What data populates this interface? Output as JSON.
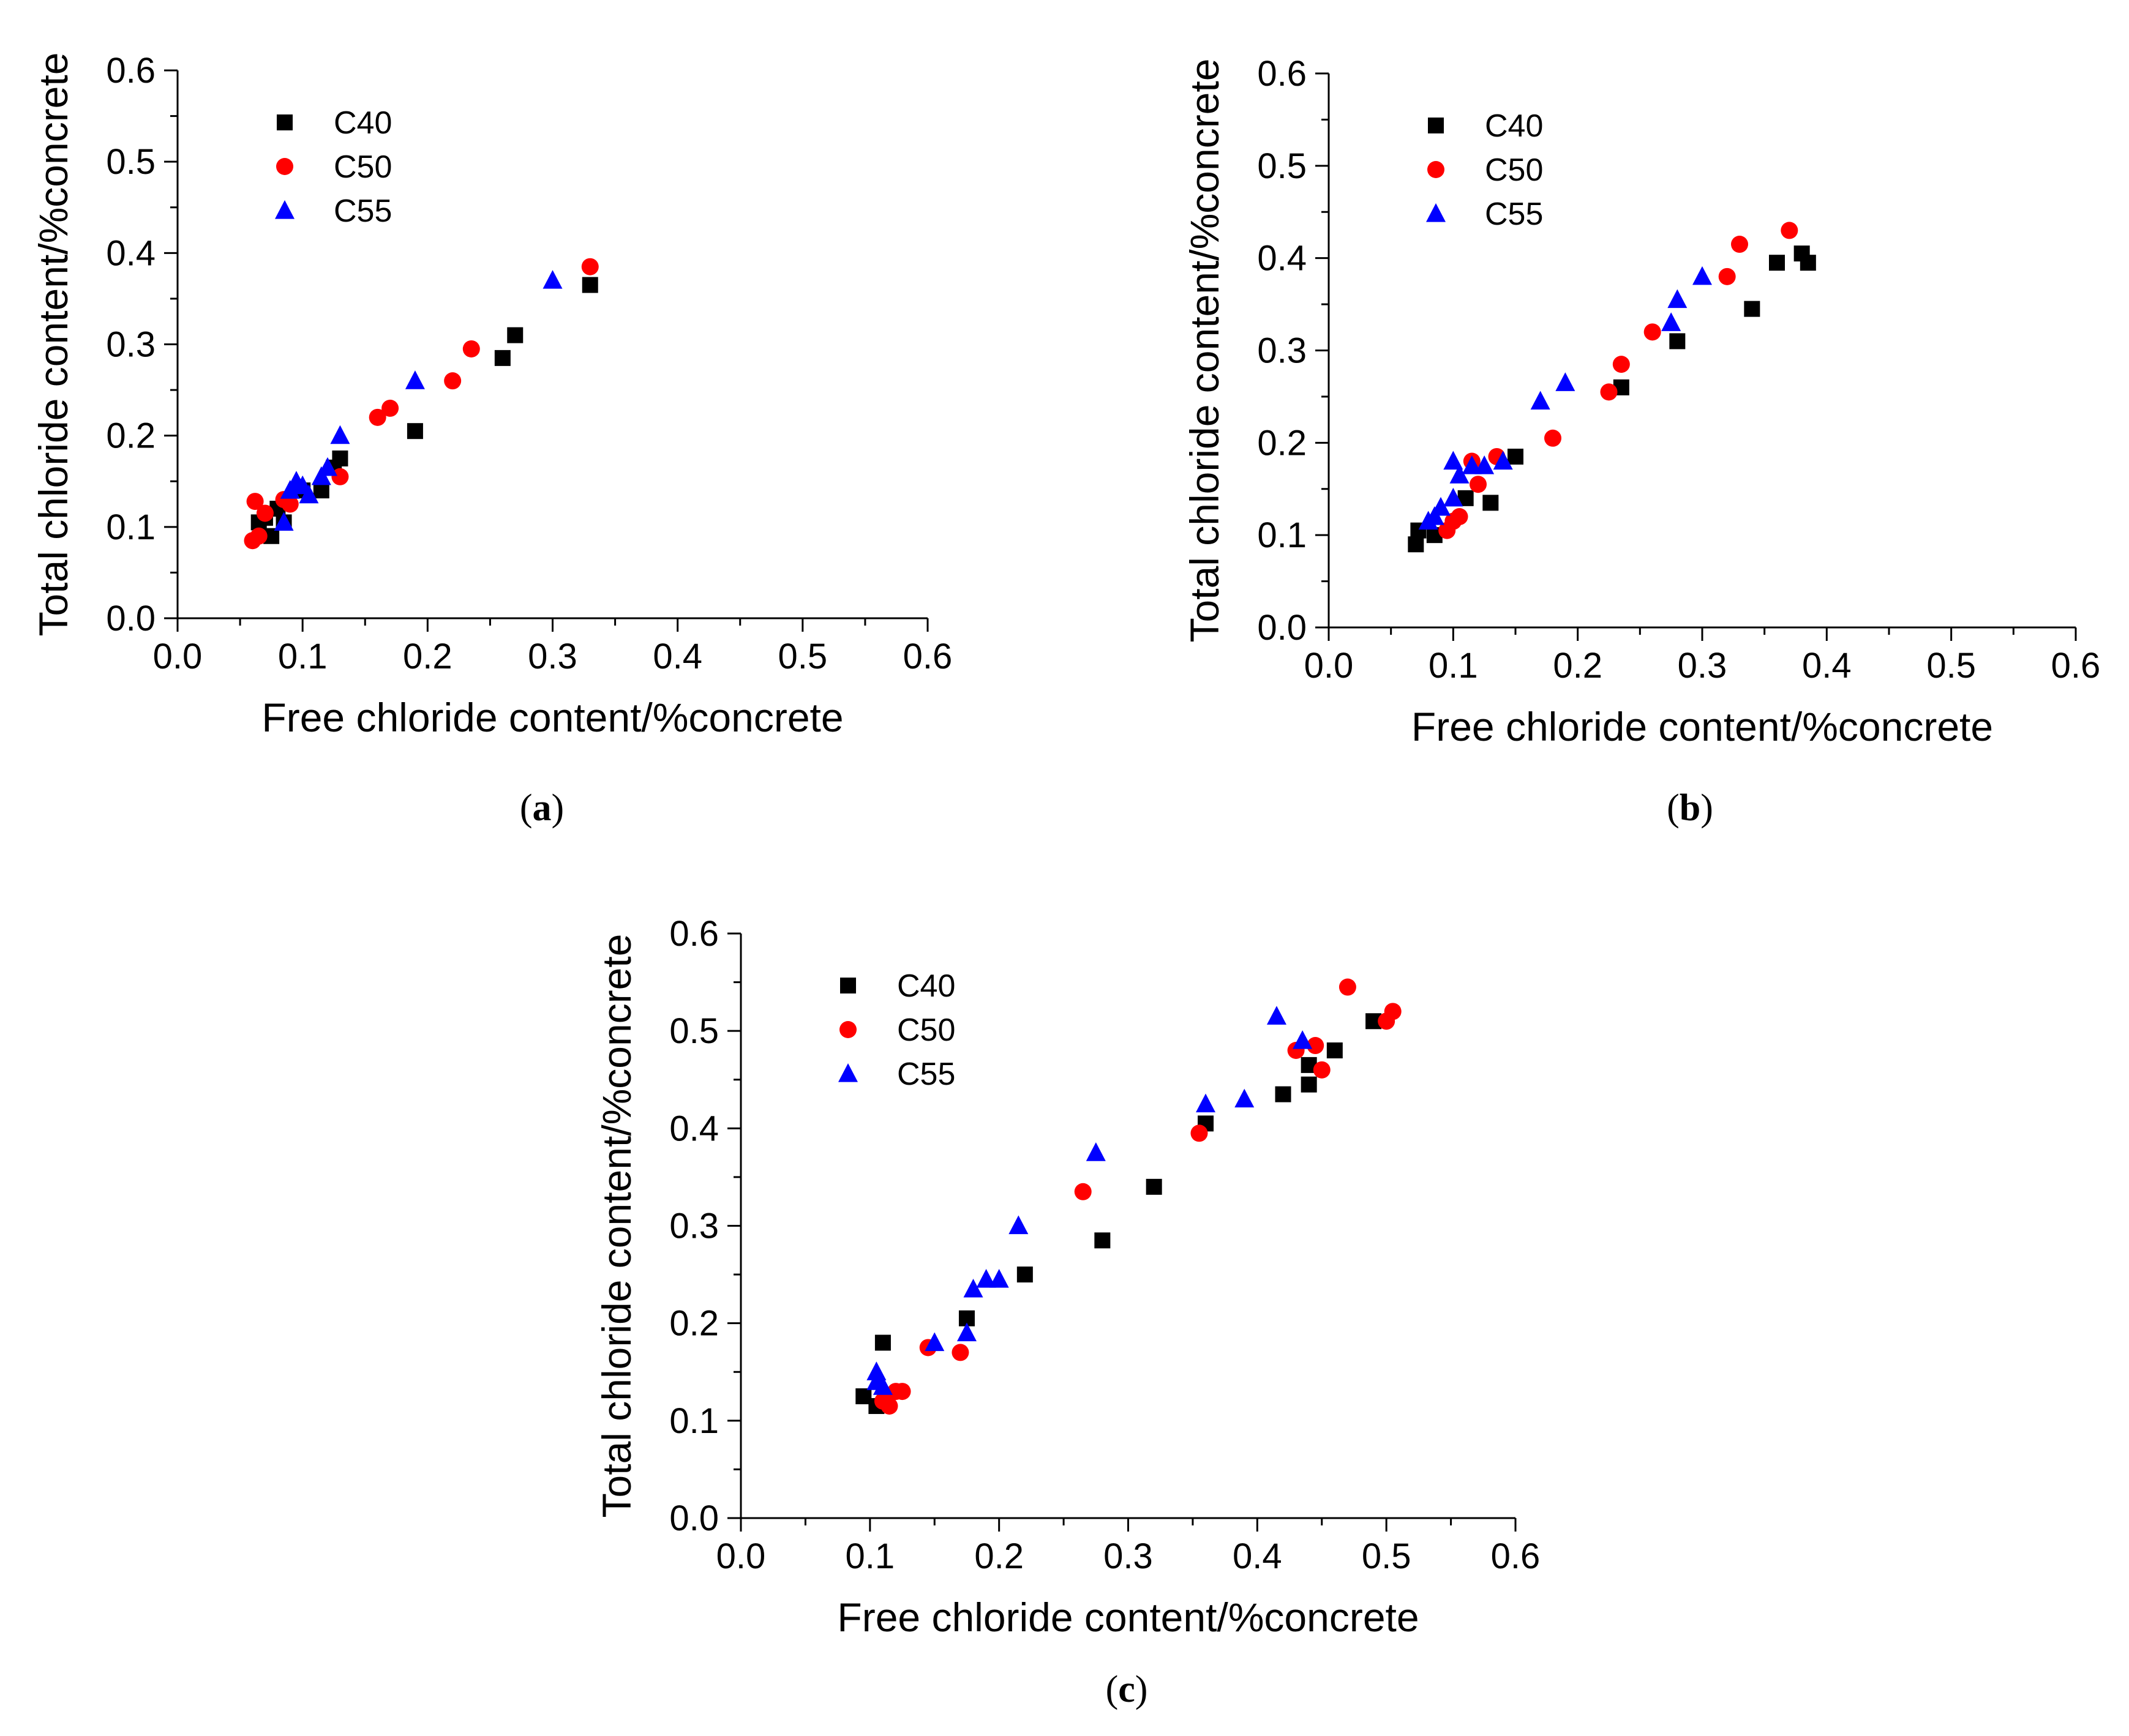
{
  "colors": {
    "C40": "#000000",
    "C50": "#ff0000",
    "C55": "#0000ff"
  },
  "chart_data": [
    {
      "panel": "a",
      "type": "scatter",
      "xlabel": "Free chloride content/%concrete",
      "ylabel": "Total chloride content/%concrete",
      "xlim": [
        0,
        0.6
      ],
      "ylim": [
        0,
        0.6
      ],
      "xticks": [
        "0.0",
        "0.1",
        "0.2",
        "0.3",
        "0.4",
        "0.5",
        "0.6"
      ],
      "yticks": [
        "0.0",
        "0.1",
        "0.2",
        "0.3",
        "0.4",
        "0.5",
        "0.6"
      ],
      "legend": [
        "C40",
        "C50",
        "C55"
      ],
      "series": [
        {
          "name": "C40",
          "marker": "square",
          "points": [
            [
              0.065,
              0.105
            ],
            [
              0.07,
              0.11
            ],
            [
              0.075,
              0.09
            ],
            [
              0.08,
              0.12
            ],
            [
              0.085,
              0.105
            ],
            [
              0.1,
              0.14
            ],
            [
              0.115,
              0.14
            ],
            [
              0.125,
              0.165
            ],
            [
              0.13,
              0.175
            ],
            [
              0.19,
              0.205
            ],
            [
              0.26,
              0.285
            ],
            [
              0.27,
              0.31
            ],
            [
              0.33,
              0.365
            ]
          ]
        },
        {
          "name": "C50",
          "marker": "circle",
          "points": [
            [
              0.06,
              0.085
            ],
            [
              0.062,
              0.128
            ],
            [
              0.065,
              0.09
            ],
            [
              0.07,
              0.115
            ],
            [
              0.085,
              0.13
            ],
            [
              0.09,
              0.125
            ],
            [
              0.13,
              0.155
            ],
            [
              0.16,
              0.22
            ],
            [
              0.17,
              0.23
            ],
            [
              0.22,
              0.26
            ],
            [
              0.235,
              0.295
            ],
            [
              0.33,
              0.385
            ]
          ]
        },
        {
          "name": "C55",
          "marker": "triangle",
          "points": [
            [
              0.085,
              0.105
            ],
            [
              0.09,
              0.14
            ],
            [
              0.095,
              0.15
            ],
            [
              0.1,
              0.145
            ],
            [
              0.105,
              0.135
            ],
            [
              0.115,
              0.155
            ],
            [
              0.12,
              0.165
            ],
            [
              0.13,
              0.2
            ],
            [
              0.19,
              0.26
            ],
            [
              0.3,
              0.37
            ]
          ]
        }
      ]
    },
    {
      "panel": "b",
      "type": "scatter",
      "xlabel": "Free chloride content/%concrete",
      "ylabel": "Total chloride content/%concrete",
      "xlim": [
        0,
        0.6
      ],
      "ylim": [
        0,
        0.6
      ],
      "xticks": [
        "0.0",
        "0.1",
        "0.2",
        "0.3",
        "0.4",
        "0.5",
        "0.6"
      ],
      "yticks": [
        "0.0",
        "0.1",
        "0.2",
        "0.3",
        "0.4",
        "0.5",
        "0.6"
      ],
      "legend": [
        "C40",
        "C50",
        "C55"
      ],
      "series": [
        {
          "name": "C40",
          "marker": "square",
          "points": [
            [
              0.07,
              0.09
            ],
            [
              0.072,
              0.105
            ],
            [
              0.085,
              0.1
            ],
            [
              0.11,
              0.14
            ],
            [
              0.13,
              0.135
            ],
            [
              0.15,
              0.185
            ],
            [
              0.235,
              0.26
            ],
            [
              0.28,
              0.31
            ],
            [
              0.34,
              0.345
            ],
            [
              0.36,
              0.395
            ],
            [
              0.38,
              0.405
            ],
            [
              0.385,
              0.395
            ]
          ]
        },
        {
          "name": "C50",
          "marker": "circle",
          "points": [
            [
              0.095,
              0.105
            ],
            [
              0.1,
              0.115
            ],
            [
              0.105,
              0.12
            ],
            [
              0.115,
              0.18
            ],
            [
              0.12,
              0.155
            ],
            [
              0.135,
              0.185
            ],
            [
              0.18,
              0.205
            ],
            [
              0.225,
              0.255
            ],
            [
              0.235,
              0.285
            ],
            [
              0.26,
              0.32
            ],
            [
              0.32,
              0.38
            ],
            [
              0.33,
              0.415
            ],
            [
              0.37,
              0.43
            ]
          ]
        },
        {
          "name": "C55",
          "marker": "triangle",
          "points": [
            [
              0.08,
              0.115
            ],
            [
              0.085,
              0.12
            ],
            [
              0.09,
              0.13
            ],
            [
              0.1,
              0.14
            ],
            [
              0.1,
              0.18
            ],
            [
              0.105,
              0.165
            ],
            [
              0.115,
              0.175
            ],
            [
              0.125,
              0.175
            ],
            [
              0.14,
              0.18
            ],
            [
              0.17,
              0.245
            ],
            [
              0.19,
              0.265
            ],
            [
              0.275,
              0.33
            ],
            [
              0.28,
              0.355
            ],
            [
              0.3,
              0.38
            ]
          ]
        }
      ]
    },
    {
      "panel": "c",
      "type": "scatter",
      "xlabel": "Free chloride content/%concrete",
      "ylabel": "Total chloride content/%concrete",
      "xlim": [
        0,
        0.6
      ],
      "ylim": [
        0,
        0.6
      ],
      "xticks": [
        "0.0",
        "0.1",
        "0.2",
        "0.3",
        "0.4",
        "0.5",
        "0.6"
      ],
      "yticks": [
        "0.0",
        "0.1",
        "0.2",
        "0.3",
        "0.4",
        "0.5",
        "0.6"
      ],
      "legend": [
        "C40",
        "C50",
        "C55"
      ],
      "series": [
        {
          "name": "C40",
          "marker": "square",
          "points": [
            [
              0.095,
              0.125
            ],
            [
              0.105,
              0.115
            ],
            [
              0.11,
              0.18
            ],
            [
              0.175,
              0.205
            ],
            [
              0.22,
              0.25
            ],
            [
              0.28,
              0.285
            ],
            [
              0.32,
              0.34
            ],
            [
              0.36,
              0.405
            ],
            [
              0.42,
              0.435
            ],
            [
              0.44,
              0.445
            ],
            [
              0.44,
              0.465
            ],
            [
              0.46,
              0.48
            ],
            [
              0.49,
              0.51
            ]
          ]
        },
        {
          "name": "C50",
          "marker": "circle",
          "points": [
            [
              0.11,
              0.12
            ],
            [
              0.115,
              0.115
            ],
            [
              0.12,
              0.13
            ],
            [
              0.125,
              0.13
            ],
            [
              0.145,
              0.175
            ],
            [
              0.17,
              0.17
            ],
            [
              0.265,
              0.335
            ],
            [
              0.355,
              0.395
            ],
            [
              0.43,
              0.48
            ],
            [
              0.445,
              0.485
            ],
            [
              0.45,
              0.46
            ],
            [
              0.47,
              0.545
            ],
            [
              0.5,
              0.51
            ],
            [
              0.505,
              0.52
            ]
          ]
        },
        {
          "name": "C55",
          "marker": "triangle",
          "points": [
            [
              0.105,
              0.14
            ],
            [
              0.105,
              0.15
            ],
            [
              0.11,
              0.135
            ],
            [
              0.15,
              0.18
            ],
            [
              0.175,
              0.19
            ],
            [
              0.18,
              0.235
            ],
            [
              0.19,
              0.245
            ],
            [
              0.2,
              0.245
            ],
            [
              0.215,
              0.3
            ],
            [
              0.275,
              0.375
            ],
            [
              0.36,
              0.425
            ],
            [
              0.39,
              0.43
            ],
            [
              0.415,
              0.515
            ],
            [
              0.435,
              0.49
            ]
          ]
        }
      ]
    }
  ],
  "panel_labels": [
    {
      "open": "(",
      "letter": "a",
      "close": ")"
    },
    {
      "open": "(",
      "letter": "b",
      "close": ")"
    },
    {
      "open": "(",
      "letter": "c",
      "close": ")"
    }
  ]
}
